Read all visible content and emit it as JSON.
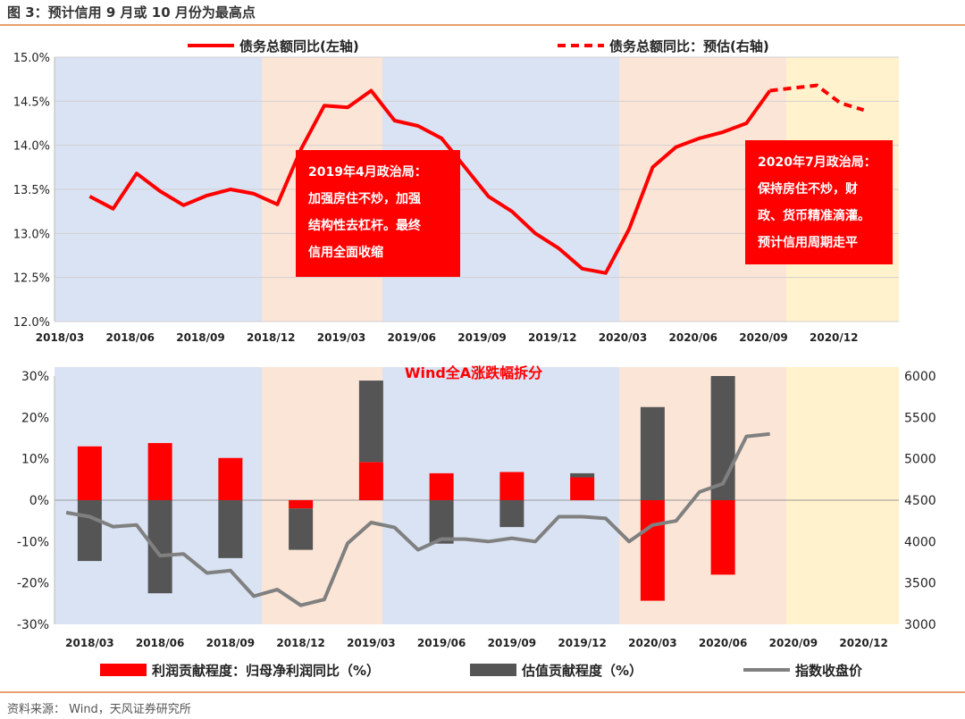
{
  "figure": {
    "title": "图 3：预计信用 9 月或 10 月份为最高点",
    "source": "资料来源：  Wind，天风证券研究所"
  },
  "colors": {
    "red": "#ff0000",
    "dark_gray": "#555555",
    "line_gray": "#808080",
    "blue_band": "#dae3f3",
    "peach_band": "#fbe5d6",
    "yellow_band": "#fff2cc",
    "annotation_bg": "#ff0000"
  },
  "chart_data": [
    {
      "type": "line",
      "legend": [
        "债务总额同比(左轴)",
        "债务总额同比：预估(右轴)"
      ],
      "ylim": [
        0.12,
        0.15
      ],
      "yticks": [
        "15.0%",
        "14.5%",
        "14.0%",
        "13.5%",
        "13.0%",
        "12.5%",
        "12.0%"
      ],
      "xticks": [
        "2018/03",
        "2018/06",
        "2018/09",
        "2018/12",
        "2019/03",
        "2019/06",
        "2019/09",
        "2019/12",
        "2020/03",
        "2020/06",
        "2020/09",
        "2020/12"
      ],
      "bands": [
        "blue",
        "peach",
        "blue",
        "peach",
        "yellow"
      ],
      "series": [
        {
          "name": "债务总额同比(左轴)",
          "style": "solid",
          "x": [
            "2018/03",
            "2018/04",
            "2018/05",
            "2018/06",
            "2018/07",
            "2018/08",
            "2018/09",
            "2018/10",
            "2018/11",
            "2018/12",
            "2019/01",
            "2019/02",
            "2019/03",
            "2019/04",
            "2019/05",
            "2019/06",
            "2019/07",
            "2019/08",
            "2019/09",
            "2019/10",
            "2019/11",
            "2019/12",
            "2020/01",
            "2020/02",
            "2020/03",
            "2020/04",
            "2020/05",
            "2020/06",
            "2020/07",
            "2020/08"
          ],
          "values": [
            0.1342,
            0.1328,
            0.1368,
            0.1348,
            0.1332,
            0.1343,
            0.135,
            0.1345,
            0.1333,
            0.1395,
            0.1445,
            0.1443,
            0.1462,
            0.1428,
            0.1422,
            0.1408,
            0.1375,
            0.1342,
            0.1325,
            0.13,
            0.1283,
            0.126,
            0.1255,
            0.1305,
            0.1375,
            0.1398,
            0.1408,
            0.1415,
            0.1425,
            0.1462
          ]
        },
        {
          "name": "债务总额同比：预估(右轴)",
          "style": "dashed",
          "x": [
            "2020/08",
            "2020/09",
            "2020/10",
            "2020/11",
            "2020/12"
          ],
          "values": [
            0.1462,
            0.1465,
            0.1468,
            0.1448,
            0.144
          ]
        }
      ],
      "annotations": [
        {
          "lines": [
            "2019年4月政治局：",
            "加强房住不炒，加强",
            "结构性去杠杆。最终",
            "信用全面收缩"
          ]
        },
        {
          "lines": [
            "2020年7月政治局：",
            "保持房住不炒，财",
            "政、货币精准滴灌。",
            "预计信用周期走平"
          ]
        }
      ]
    },
    {
      "type": "bar",
      "title": "Wind全A涨跌幅拆分",
      "ylim": [
        -0.3,
        0.3
      ],
      "y2lim": [
        3000,
        6000
      ],
      "yticks": [
        "30%",
        "20%",
        "10%",
        "0%",
        "-10%",
        "-20%",
        "-30%"
      ],
      "y2ticks": [
        "6000",
        "5500",
        "5000",
        "4500",
        "4000",
        "3500",
        "3000"
      ],
      "categories": [
        "2018/03",
        "2018/06",
        "2018/09",
        "2018/12",
        "2019/03",
        "2019/06",
        "2019/09",
        "2019/12",
        "2020/03",
        "2020/06",
        "2020/09",
        "2020/12"
      ],
      "legend": [
        "利润贡献程度：归母净利润同比（%）",
        "估值贡献程度（%）",
        "指数收盘价"
      ],
      "series": [
        {
          "name": "利润贡献程度：归母净利润同比（%）",
          "values": [
            0.13,
            0.138,
            0.102,
            -0.02,
            0.092,
            0.065,
            0.068,
            0.055,
            -0.243,
            -0.18,
            null,
            null
          ]
        },
        {
          "name": "估值贡献程度（%）",
          "values": [
            -0.147,
            -0.225,
            -0.14,
            -0.1,
            0.197,
            -0.105,
            -0.065,
            0.01,
            0.225,
            0.3,
            null,
            null
          ]
        },
        {
          "name": "指数收盘价",
          "x": [
            "2018/02",
            "2018/03",
            "2018/04",
            "2018/05",
            "2018/06",
            "2018/07",
            "2018/08",
            "2018/09",
            "2018/10",
            "2018/11",
            "2018/12",
            "2019/01",
            "2019/02",
            "2019/03",
            "2019/04",
            "2019/05",
            "2019/06",
            "2019/07",
            "2019/08",
            "2019/09",
            "2019/10",
            "2019/11",
            "2019/12",
            "2020/01",
            "2020/02",
            "2020/03",
            "2020/04",
            "2020/05",
            "2020/06",
            "2020/07",
            "2020/08"
          ],
          "values": [
            4350,
            4300,
            4180,
            4200,
            3830,
            3850,
            3620,
            3650,
            3340,
            3420,
            3230,
            3300,
            3980,
            4230,
            4170,
            3900,
            4030,
            4030,
            4000,
            4040,
            4000,
            4300,
            4300,
            4280,
            4000,
            4200,
            4250,
            4600,
            4700,
            5270,
            5300
          ]
        }
      ]
    }
  ]
}
